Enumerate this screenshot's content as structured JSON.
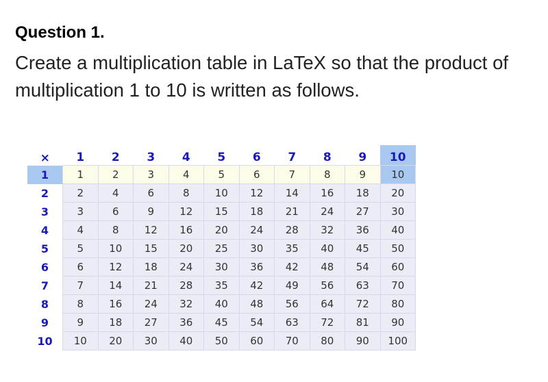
{
  "title": "Question 1.",
  "question": "Create a multiplication table in LaTeX so that the product of multiplication 1 to 10 is written as follows.",
  "table": {
    "corner_symbol": "×",
    "corner_icon": "multiply-icon",
    "column_headers": [
      "1",
      "2",
      "3",
      "4",
      "5",
      "6",
      "7",
      "8",
      "9",
      "10"
    ],
    "row_headers": [
      "1",
      "2",
      "3",
      "4",
      "5",
      "6",
      "7",
      "8",
      "9",
      "10"
    ],
    "highlight_row": "1",
    "highlight_column": "10",
    "colors": {
      "header_text": "#1a1ab8",
      "highlight": "#a8c8f0",
      "first_row_bg": "#fcfce8",
      "cell_bg": "#ececf7",
      "corner": "#e8403a"
    },
    "rows": [
      [
        "1",
        "2",
        "3",
        "4",
        "5",
        "6",
        "7",
        "8",
        "9",
        "10"
      ],
      [
        "2",
        "4",
        "6",
        "8",
        "10",
        "12",
        "14",
        "16",
        "18",
        "20"
      ],
      [
        "3",
        "6",
        "9",
        "12",
        "15",
        "18",
        "21",
        "24",
        "27",
        "30"
      ],
      [
        "4",
        "8",
        "12",
        "16",
        "20",
        "24",
        "28",
        "32",
        "36",
        "40"
      ],
      [
        "5",
        "10",
        "15",
        "20",
        "25",
        "30",
        "35",
        "40",
        "45",
        "50"
      ],
      [
        "6",
        "12",
        "18",
        "24",
        "30",
        "36",
        "42",
        "48",
        "54",
        "60"
      ],
      [
        "7",
        "14",
        "21",
        "28",
        "35",
        "42",
        "49",
        "56",
        "63",
        "70"
      ],
      [
        "8",
        "16",
        "24",
        "32",
        "40",
        "48",
        "56",
        "64",
        "72",
        "80"
      ],
      [
        "9",
        "18",
        "27",
        "36",
        "45",
        "54",
        "63",
        "72",
        "81",
        "90"
      ],
      [
        "10",
        "20",
        "30",
        "40",
        "50",
        "60",
        "70",
        "80",
        "90",
        "100"
      ]
    ]
  }
}
